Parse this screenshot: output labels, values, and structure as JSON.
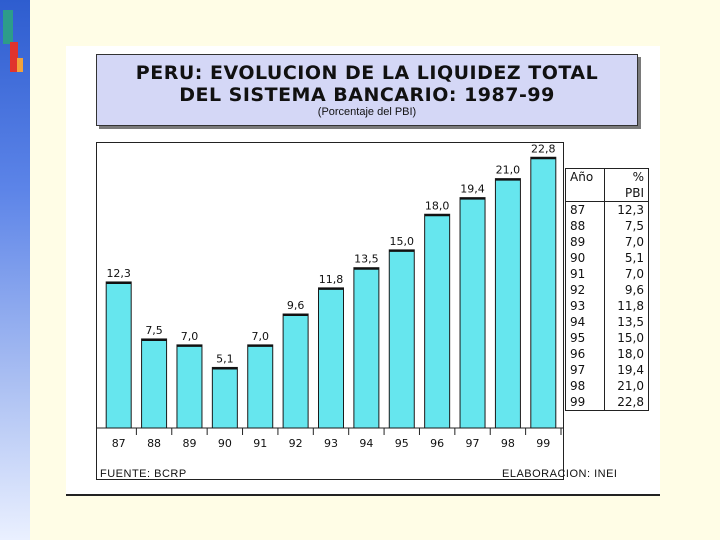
{
  "slide": {
    "title_line_1": "PERU: EVOLUCION DE LA LIQUIDEZ TOTAL",
    "title_line_2": "DEL SISTEMA BANCARIO: 1987-99",
    "subtitle": "(Porcentaje del PBI)",
    "source": "FUENTE: BCRP",
    "credit": "ELABORACION: INEI"
  },
  "chart_data": {
    "type": "bar",
    "title": "PERU: EVOLUCION DE LA LIQUIDEZ TOTAL DEL SISTEMA BANCARIO: 1987-99",
    "subtitle": "(Porcentaje del PBI)",
    "categories": [
      "87",
      "88",
      "89",
      "90",
      "91",
      "92",
      "93",
      "94",
      "95",
      "96",
      "97",
      "98",
      "99"
    ],
    "values": [
      12.3,
      7.5,
      7.0,
      5.1,
      7.0,
      9.6,
      11.8,
      13.5,
      15.0,
      18.0,
      19.4,
      21.0,
      22.8
    ],
    "value_labels": [
      "12,3",
      "7,5",
      "7,0",
      "5,1",
      "7,0",
      "9,6",
      "11,8",
      "13,5",
      "15,0",
      "18,0",
      "19,4",
      "21,0",
      "22,8"
    ],
    "ylim": [
      0,
      24
    ],
    "grid": false,
    "legend": "none",
    "bar_color": "#66E6EE",
    "bar_edge_color": "#1A1A1A"
  },
  "table": {
    "header_year": "Año",
    "header_pct": "%",
    "header_pct_sub": "PBI",
    "rows": [
      {
        "year": "87",
        "pct": "12,3"
      },
      {
        "year": "88",
        "pct": "7,5"
      },
      {
        "year": "89",
        "pct": "7,0"
      },
      {
        "year": "90",
        "pct": "5,1"
      },
      {
        "year": "91",
        "pct": "7,0"
      },
      {
        "year": "92",
        "pct": "9,6"
      },
      {
        "year": "93",
        "pct": "11,8"
      },
      {
        "year": "94",
        "pct": "13,5"
      },
      {
        "year": "95",
        "pct": "15,0"
      },
      {
        "year": "96",
        "pct": "18,0"
      },
      {
        "year": "97",
        "pct": "19,4"
      },
      {
        "year": "98",
        "pct": "21,0"
      },
      {
        "year": "99",
        "pct": "22,8"
      }
    ]
  }
}
